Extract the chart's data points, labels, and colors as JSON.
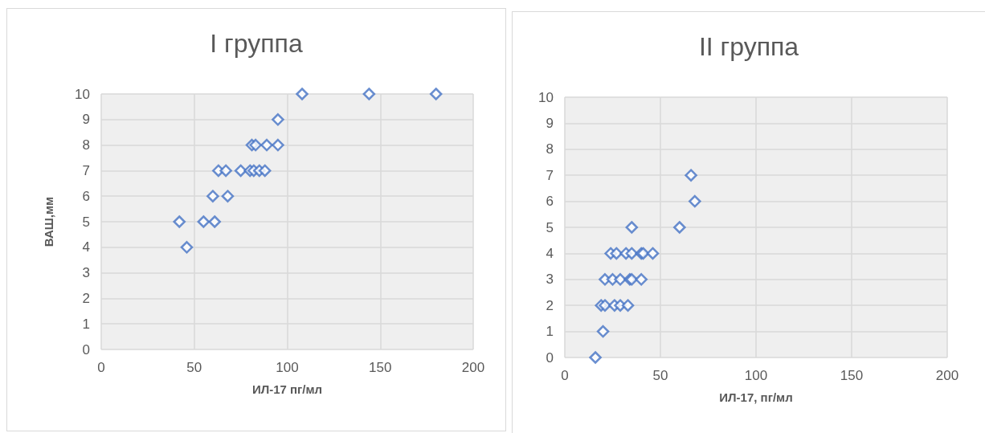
{
  "chart_data": [
    {
      "type": "scatter",
      "title": "I группа",
      "xlabel": "ИЛ-17 пг/мл",
      "ylabel": "ВАШ,мм",
      "marker": "diamond",
      "grid": true,
      "xlim": [
        0,
        200
      ],
      "xticks": [
        0,
        50,
        100,
        150,
        200
      ],
      "ylim": [
        0,
        10
      ],
      "yticks": [
        0,
        1,
        2,
        3,
        4,
        5,
        6,
        7,
        8,
        9,
        10
      ],
      "series": [
        {
          "color": "#4472c4",
          "x": [
            108,
            144,
            180,
            95,
            81,
            83,
            89,
            95,
            63,
            67,
            75,
            80,
            82,
            85,
            88,
            60,
            68,
            42,
            55,
            61,
            46
          ],
          "values": [
            10,
            10,
            10,
            9,
            8,
            8,
            8,
            8,
            7,
            7,
            7,
            7,
            7,
            7,
            7,
            6,
            6,
            5,
            5,
            5,
            4
          ]
        }
      ]
    },
    {
      "type": "scatter",
      "title": "II группа",
      "xlabel": "ИЛ-17, пг/мл",
      "marker": "diamond",
      "grid": true,
      "xlim": [
        0,
        200
      ],
      "xticks": [
        0,
        50,
        100,
        150,
        200
      ],
      "ylim": [
        0,
        10
      ],
      "yticks": [
        0,
        1,
        2,
        3,
        4,
        5,
        6,
        7,
        8,
        9,
        10
      ],
      "series": [
        {
          "color": "#4472c4",
          "x": [
            66,
            68,
            35,
            60,
            24,
            27,
            32,
            35,
            40,
            41,
            46,
            21,
            25,
            29,
            34,
            35,
            40,
            19,
            21,
            26,
            29,
            33,
            20,
            16
          ],
          "values": [
            7,
            6,
            5,
            5,
            4,
            4,
            4,
            4,
            4,
            4,
            4,
            3,
            3,
            3,
            3,
            3,
            3,
            2,
            2,
            2,
            2,
            2,
            1,
            0
          ]
        }
      ]
    }
  ]
}
